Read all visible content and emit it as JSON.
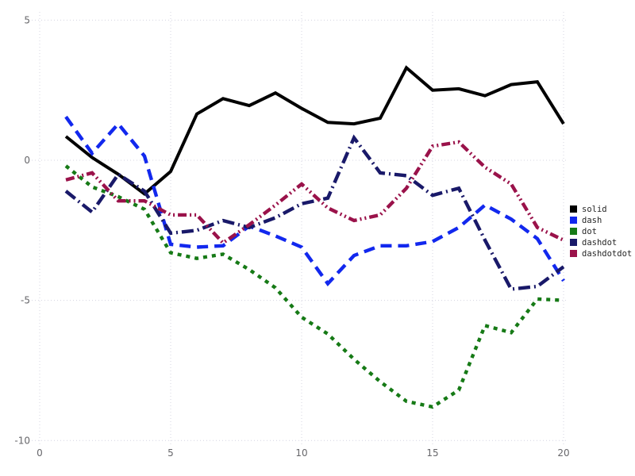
{
  "figure": {
    "title": "",
    "background": "#ffffff",
    "grid_color": "#d4d4e0",
    "tick_label_color": "#66666a"
  },
  "chart_data": {
    "type": "line",
    "title": "",
    "xlabel": "",
    "ylabel": "",
    "xlim": [
      0,
      20
    ],
    "ylim": [
      -10,
      5
    ],
    "x_ticks": [
      "0",
      "5",
      "10",
      "15",
      "20"
    ],
    "x_tick_values": [
      0,
      5,
      10,
      15,
      20
    ],
    "y_ticks": [
      "-10",
      "-5",
      "0",
      "5"
    ],
    "y_tick_values": [
      -10,
      -5,
      0,
      5
    ],
    "grid": "dotted",
    "legend_position": "right",
    "x": [
      1,
      2,
      3,
      4,
      5,
      6,
      7,
      8,
      9,
      10,
      11,
      12,
      13,
      14,
      15,
      16,
      17,
      18,
      19,
      20
    ],
    "series": [
      {
        "name": "solid",
        "color": "#000000",
        "line_style": "solid",
        "values": [
          0.85,
          0.1,
          -0.5,
          -1.2,
          -0.4,
          1.65,
          2.2,
          1.95,
          2.4,
          1.85,
          1.35,
          1.3,
          1.5,
          3.3,
          2.5,
          2.55,
          2.3,
          2.7,
          2.8,
          1.3
        ]
      },
      {
        "name": "dash",
        "color": "#1228ee",
        "line_style": "dash",
        "values": [
          1.55,
          0.25,
          1.3,
          0.15,
          -3.0,
          -3.1,
          -3.05,
          -2.35,
          -2.7,
          -3.1,
          -4.4,
          -3.4,
          -3.05,
          -3.05,
          -2.9,
          -2.4,
          -1.6,
          -2.1,
          -2.8,
          -4.3
        ]
      },
      {
        "name": "dot",
        "color": "#167a16",
        "line_style": "dot",
        "values": [
          -0.2,
          -0.95,
          -1.3,
          -1.75,
          -3.3,
          -3.5,
          -3.35,
          -3.9,
          -4.55,
          -5.6,
          -6.2,
          -7.1,
          -7.9,
          -8.6,
          -8.8,
          -8.2,
          -5.9,
          -6.15,
          -4.95,
          -5.0
        ]
      },
      {
        "name": "dashdot",
        "color": "#191969",
        "line_style": "dashdot",
        "values": [
          -1.1,
          -1.85,
          -0.5,
          -1.1,
          -2.6,
          -2.5,
          -2.15,
          -2.4,
          -2.05,
          -1.55,
          -1.35,
          0.8,
          -0.45,
          -0.55,
          -1.25,
          -1.0,
          -2.85,
          -4.6,
          -4.5,
          -3.8
        ]
      },
      {
        "name": "dashdotdot",
        "color": "#9a124a",
        "line_style": "dashdotdot",
        "values": [
          -0.7,
          -0.45,
          -1.45,
          -1.45,
          -1.95,
          -1.95,
          -2.95,
          -2.3,
          -1.6,
          -0.85,
          -1.7,
          -2.15,
          -1.95,
          -1.0,
          0.5,
          0.65,
          -0.25,
          -0.85,
          -2.4,
          -2.85
        ]
      }
    ],
    "legend": [
      {
        "label": "solid",
        "color": "#000000"
      },
      {
        "label": "dash",
        "color": "#1228ee"
      },
      {
        "label": "dot",
        "color": "#167a16"
      },
      {
        "label": "dashdot",
        "color": "#191969"
      },
      {
        "label": "dashdotdot",
        "color": "#9a124a"
      }
    ]
  }
}
